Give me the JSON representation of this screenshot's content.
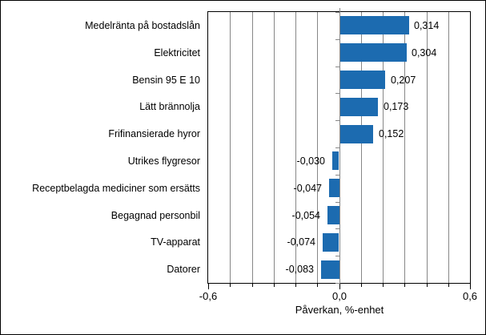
{
  "chart_data": {
    "type": "bar",
    "orientation": "horizontal",
    "categories": [
      "Medelränta på bostadslån",
      "Elektricitet",
      "Bensin 95 E 10",
      "Lätt brännolja",
      "Frifinansierade hyror",
      "Utrikes flygresor",
      "Receptbelagda mediciner som ersätts",
      "Begagnad personbil",
      "TV-apparat",
      "Datorer"
    ],
    "values": [
      0.314,
      0.304,
      0.207,
      0.173,
      0.152,
      -0.03,
      -0.047,
      -0.054,
      -0.074,
      -0.083
    ],
    "value_labels": [
      "0,314",
      "0,304",
      "0,207",
      "0,173",
      "0,152",
      "-0,030",
      "-0,047",
      "-0,054",
      "-0,074",
      "-0,083"
    ],
    "title": "",
    "xlabel": "Påverkan, %-enhet",
    "ylabel": "",
    "xlim": [
      -0.6,
      0.6
    ],
    "x_tick_values": [
      -0.6,
      0.0,
      0.6
    ],
    "x_tick_labels": [
      "-0,6",
      "0,0",
      "0,6"
    ],
    "minor_tick_interval": 0.1,
    "grid": true,
    "grid_interval": 0.1,
    "legend": false,
    "bar_color": "#1c6bb0",
    "grid_color": "#878787",
    "axis_color": "#000000",
    "text_color": "#000000",
    "background_color": "#ffffff"
  }
}
